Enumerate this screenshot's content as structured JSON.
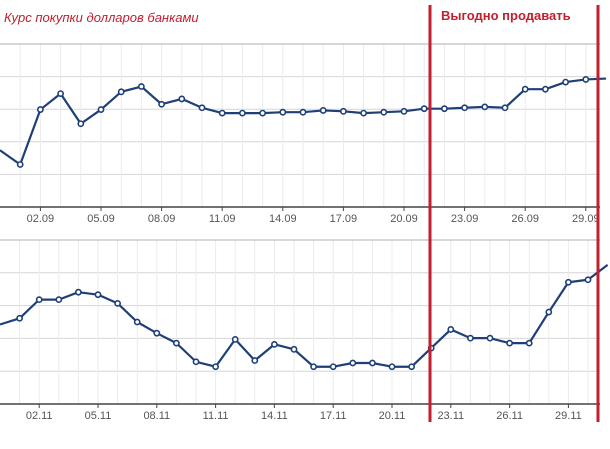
{
  "annotations": {
    "title": "Курс покупки долларов банками",
    "sell_label": "Выгодно продавать"
  },
  "colors": {
    "line": "#1f3f78",
    "annotation": "#c21f2f",
    "grid": "#d6d6d6",
    "axis": "#444444",
    "panel_border": "#bfbfbf",
    "tick_text": "#555555"
  },
  "chart_data": [
    {
      "type": "line",
      "panel": "top",
      "x": [
        "31.08",
        "01.09",
        "02.09",
        "03.09",
        "04.09",
        "05.09",
        "06.09",
        "07.09",
        "08.09",
        "09.09",
        "10.09",
        "11.09",
        "12.09",
        "13.09",
        "14.09",
        "15.09",
        "16.09",
        "17.09",
        "18.09",
        "19.09",
        "20.09",
        "21.09",
        "22.09",
        "23.09",
        "24.09",
        "25.09",
        "26.09",
        "27.09",
        "28.09",
        "29.09",
        "30.09"
      ],
      "x_tick_labels": [
        "02.09",
        "05.09",
        "08.09",
        "11.09",
        "14.09",
        "17.09",
        "20.09",
        "23.09",
        "26.09",
        "29.09"
      ],
      "values": [
        52,
        44,
        75,
        84,
        67,
        75,
        85,
        88,
        78,
        81,
        76,
        73,
        73,
        73,
        73.5,
        73.5,
        74.5,
        74,
        73,
        73.5,
        74,
        75.5,
        75.5,
        76,
        76.5,
        76,
        86.5,
        86.5,
        90.5,
        92,
        92.5
      ],
      "ylim": [
        20,
        112
      ],
      "grid": true,
      "xlabel": "",
      "ylabel": ""
    },
    {
      "type": "line",
      "panel": "bottom",
      "x": [
        "31.10",
        "01.11",
        "02.11",
        "03.11",
        "04.11",
        "05.11",
        "06.11",
        "07.11",
        "08.11",
        "09.11",
        "10.11",
        "11.11",
        "12.11",
        "13.11",
        "14.11",
        "15.11",
        "16.11",
        "17.11",
        "18.11",
        "19.11",
        "20.11",
        "21.11",
        "22.11",
        "23.11",
        "24.11",
        "25.11",
        "26.11",
        "27.11",
        "28.11",
        "29.11",
        "30.11",
        "01.12"
      ],
      "x_tick_labels": [
        "02.11",
        "05.11",
        "08.11",
        "11.11",
        "14.11",
        "17.11",
        "20.11",
        "23.11",
        "26.11",
        "29.11"
      ],
      "values": [
        44,
        49,
        64,
        64,
        70,
        68,
        61,
        46,
        37,
        29,
        14,
        10,
        32,
        15,
        28,
        24,
        10,
        10,
        13,
        13,
        10,
        10,
        25,
        40,
        33,
        33,
        29,
        29,
        54,
        78,
        80,
        92
      ],
      "ylim": [
        -20,
        112
      ],
      "grid": true,
      "xlabel": "",
      "ylabel": ""
    }
  ]
}
